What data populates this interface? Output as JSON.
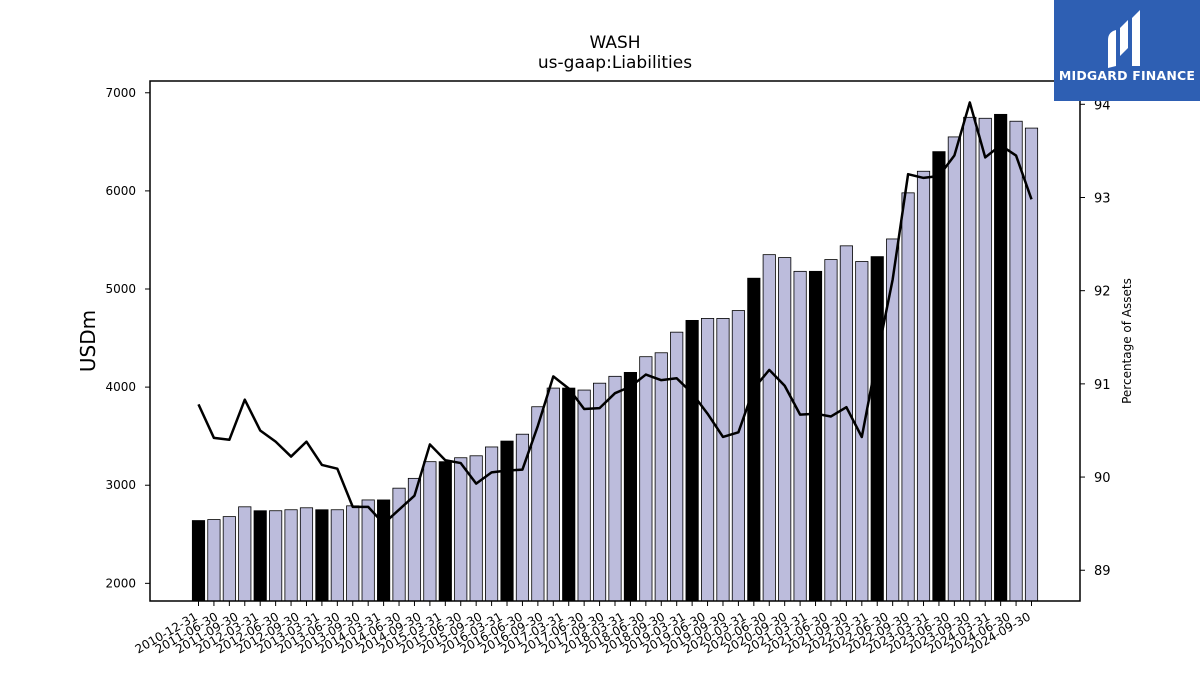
{
  "brand": {
    "name": "MIDGARD FINANCE",
    "color": "#2e5fb3"
  },
  "chart_data": {
    "type": "bar",
    "title": "WASH",
    "subtitle": "us-gaap:Liabilities",
    "ylabel": "USDm",
    "y2label": "Percentage of Assets",
    "ylim": [
      1820,
      7120
    ],
    "y2lim": [
      88.67,
      94.25
    ],
    "yticks": [
      2000,
      3000,
      4000,
      5000,
      6000,
      7000
    ],
    "y2ticks": [
      89,
      90,
      91,
      92,
      93,
      94
    ],
    "bar_fill_color": "#bcbcdc",
    "year_end_bar_color": "#000000",
    "line_color": "#000000",
    "grid": false,
    "categories": [
      "2010-12-31",
      "2011-03-31",
      "2011-06-30",
      "2011-09-30",
      "2011-12-31",
      "2012-03-31",
      "2012-06-30",
      "2012-09-30",
      "2012-12-31",
      "2013-03-31",
      "2013-06-30",
      "2013-09-30",
      "2013-12-31",
      "2014-03-31",
      "2014-06-30",
      "2014-09-30",
      "2014-12-31",
      "2015-03-31",
      "2015-06-30",
      "2015-09-30",
      "2015-12-31",
      "2016-03-31",
      "2016-06-30",
      "2016-09-30",
      "2016-12-31",
      "2017-03-31",
      "2017-06-30",
      "2017-09-30",
      "2017-12-31",
      "2018-03-31",
      "2018-06-30",
      "2018-09-30",
      "2018-12-31",
      "2019-03-31",
      "2019-06-30",
      "2019-09-30",
      "2019-12-31",
      "2020-03-31",
      "2020-06-30",
      "2020-09-30",
      "2020-12-31",
      "2021-03-31",
      "2021-06-30",
      "2021-09-30",
      "2021-12-31",
      "2022-03-31",
      "2022-06-30",
      "2022-09-30",
      "2022-12-31",
      "2023-03-31",
      "2023-06-30",
      "2023-09-30",
      "2023-12-31",
      "2024-03-31",
      "2024-06-30",
      "2024-09-30"
    ],
    "x_tick_labels": [
      "2010-12-31",
      "2011-06-30",
      "2011-09-30",
      "2012-03-31",
      "2012-06-30",
      "2012-09-30",
      "2013-03-31",
      "2013-06-30",
      "2013-09-30",
      "2014-03-31",
      "2014-06-30",
      "2014-09-30",
      "2015-03-31",
      "2015-06-30",
      "2015-09-30",
      "2016-03-31",
      "2016-06-30",
      "2016-09-30",
      "2017-03-31",
      "2017-06-30",
      "2017-09-30",
      "2018-03-31",
      "2018-06-30",
      "2018-09-30",
      "2019-03-31",
      "2019-06-30",
      "2019-09-30",
      "2020-03-31",
      "2020-06-30",
      "2020-09-30",
      "2021-03-31",
      "2021-06-30",
      "2021-09-30",
      "2022-03-31",
      "2022-06-30",
      "2022-09-30",
      "2023-03-31",
      "2023-06-30",
      "2023-09-30",
      "2024-03-31",
      "2024-06-30",
      "2024-09-30"
    ],
    "series": [
      {
        "name": "Liabilities",
        "type": "bar",
        "axis": "left",
        "values": [
          2640,
          2650,
          2680,
          2780,
          2740,
          2740,
          2750,
          2770,
          2750,
          2750,
          2790,
          2850,
          2850,
          2970,
          3070,
          3240,
          3240,
          3280,
          3300,
          3390,
          3450,
          3520,
          3800,
          3990,
          3990,
          3970,
          4040,
          4110,
          4150,
          4310,
          4350,
          4560,
          4680,
          4700,
          4700,
          4780,
          5110,
          5350,
          5320,
          5180,
          5180,
          5300,
          5440,
          5280,
          5330,
          5510,
          5980,
          6200,
          6400,
          6550,
          6750,
          6740,
          6780,
          6710,
          6640,
          null
        ]
      },
      {
        "name": "Percentage of Assets",
        "type": "line",
        "axis": "right",
        "values": [
          90.78,
          90.42,
          90.4,
          90.83,
          90.5,
          90.38,
          90.22,
          90.38,
          90.13,
          90.09,
          89.68,
          89.68,
          89.5,
          89.65,
          89.8,
          90.35,
          90.18,
          90.15,
          89.93,
          90.05,
          90.07,
          90.08,
          90.55,
          91.08,
          90.95,
          90.73,
          90.74,
          90.9,
          90.97,
          91.1,
          91.04,
          91.06,
          90.9,
          90.68,
          90.43,
          90.48,
          90.95,
          91.15,
          90.98,
          90.67,
          90.68,
          90.65,
          90.75,
          90.43,
          91.3,
          92.12,
          93.25,
          93.21,
          93.23,
          93.45,
          94.02,
          93.43,
          93.56,
          93.45,
          92.98,
          null
        ]
      }
    ]
  }
}
